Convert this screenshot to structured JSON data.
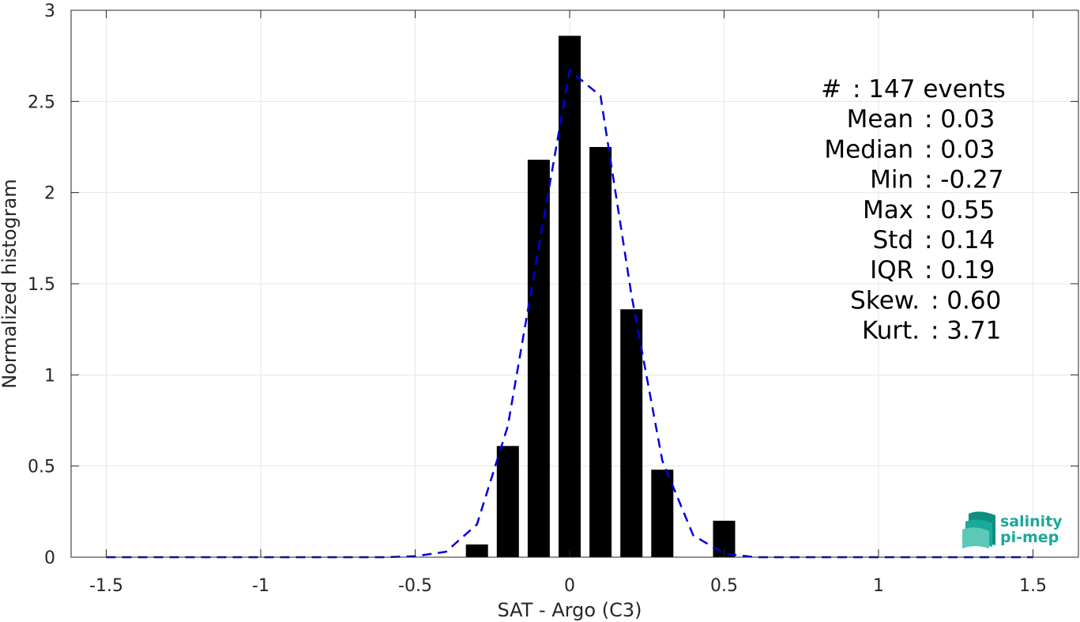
{
  "chart_data": {
    "type": "bar",
    "xlabel": "SAT - Argo (C3)",
    "ylabel": "Normalized histogram",
    "xlim": [
      -1.5,
      1.5
    ],
    "ylim": [
      0,
      3
    ],
    "xticks": [
      "-1.5",
      "-1",
      "-0.5",
      "0",
      "0.5",
      "1",
      "1.5"
    ],
    "xtick_values": [
      -1.5,
      -1,
      -0.5,
      0,
      0.5,
      1,
      1.5
    ],
    "yticks": [
      "0",
      "0.5",
      "1",
      "1.5",
      "2",
      "2.5",
      "3"
    ],
    "ytick_values": [
      0,
      0.5,
      1,
      1.5,
      2,
      2.5,
      3
    ],
    "grid": true,
    "bar_color": "#000000",
    "bars": {
      "x": [
        -0.3,
        -0.2,
        -0.1,
        0.0,
        0.1,
        0.2,
        0.3,
        0.4,
        0.5
      ],
      "values": [
        0.07,
        0.61,
        2.18,
        2.86,
        2.25,
        1.36,
        0.48,
        0.0,
        0.2
      ]
    },
    "fit_line": {
      "style": "dashed",
      "color": "#0000dd",
      "x": [
        -1.5,
        -1.4,
        -1.3,
        -1.2,
        -1.1,
        -1.0,
        -0.9,
        -0.8,
        -0.7,
        -0.6,
        -0.5,
        -0.4,
        -0.3,
        -0.2,
        -0.1,
        0.0,
        0.1,
        0.2,
        0.3,
        0.4,
        0.5,
        0.6,
        0.7,
        0.8,
        0.9,
        1.0,
        1.1,
        1.2,
        1.3,
        1.4,
        1.5
      ],
      "y": [
        0,
        0,
        0,
        0,
        0,
        0,
        0,
        0,
        0,
        0,
        0.005,
        0.03,
        0.18,
        0.72,
        1.7,
        2.67,
        2.53,
        1.44,
        0.53,
        0.12,
        0.02,
        0,
        0,
        0,
        0,
        0,
        0,
        0,
        0,
        0,
        0
      ]
    },
    "stats": [
      "#  : 147 events",
      "Mean : 0.03",
      "Median : 0.03",
      "Min : -0.27",
      "Max : 0.55",
      "Std : 0.14",
      "IQR : 0.19",
      "Skew. : 0.60",
      "Kurt. : 3.71"
    ]
  },
  "logo": {
    "line1": "salinity",
    "line2": "pi-mep",
    "color": "#1aa99a"
  }
}
